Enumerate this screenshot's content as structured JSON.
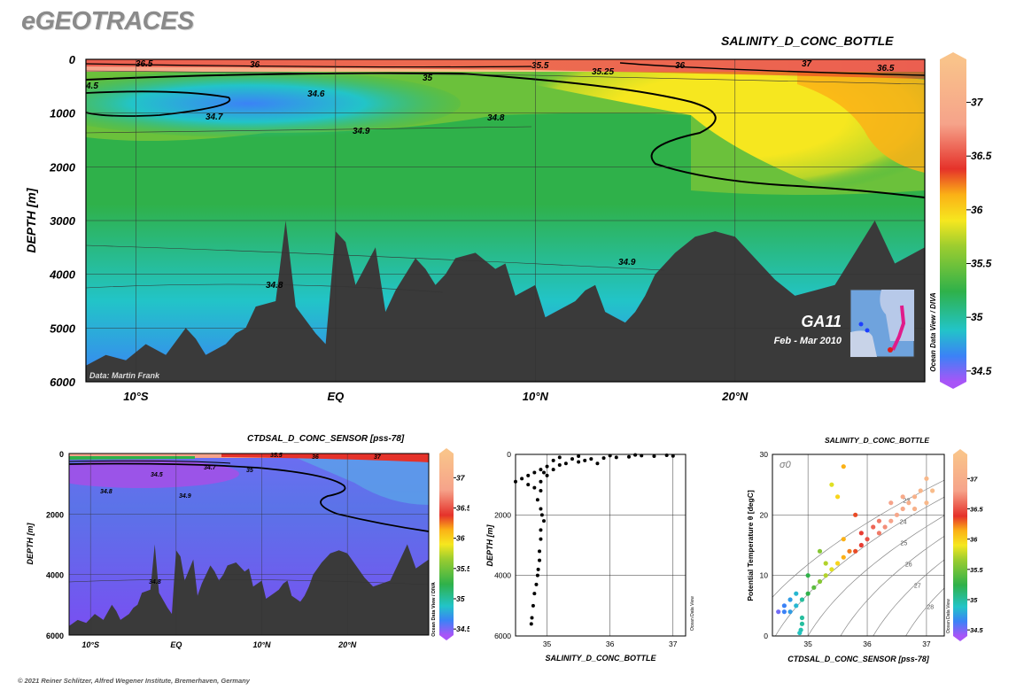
{
  "header": {
    "logo": "eGEOTRACES"
  },
  "footer": {
    "credit": "© 2021 Reiner Schlitzer, Alfred Wegener Institute, Bremerhaven, Germany"
  },
  "colors": {
    "salinity_scale": [
      "#a855f7",
      "#3b82f6",
      "#22c4c8",
      "#2fb14a",
      "#9ccd2f",
      "#f6e71f",
      "#fbb116",
      "#e5322a",
      "#f6a38a",
      "#f9c38a"
    ],
    "bathymetry": "#3a3a3a"
  },
  "main_section": {
    "title": "SALINITY_D_CONC_BOTTLE",
    "ylabel": "DEPTH [m]",
    "credit": "Data: Martin Frank",
    "cruise": "GA11",
    "dates": "Feb - Mar 2010",
    "odv_label": "Ocean Data View / DIVA",
    "contour_labels": [
      "36.5",
      "36",
      "35.5",
      "35.25",
      "36",
      "37",
      "36.5",
      "4.5",
      "34.6",
      "35",
      "34.7",
      "34.8",
      "34.9",
      "34.9",
      "34.8"
    ]
  },
  "sensor_section": {
    "title": "CTDSAL_D_CONC_SENSOR [pss-78]",
    "ylabel": "DEPTH [m]",
    "odv_label": "Ocean Data View / DIVA",
    "contour_labels": [
      "34.7",
      "35",
      "34.5",
      "34.8",
      "34.9",
      "34.8",
      "35.5",
      "36",
      "37"
    ]
  },
  "profile_panel": {
    "xlabel": "SALINITY_D_CONC_BOTTLE",
    "ylabel": "DEPTH [m]",
    "odv_label": "Ocean Data View"
  },
  "ts_panel": {
    "title": "SALINITY_D_CONC_BOTTLE",
    "xlabel": "CTDSAL_D_CONC_SENSOR [pss-78]",
    "ylabel": "Potential Temperature θ [degC]",
    "sigma_label": "σ0",
    "odv_label": "Ocean Data View"
  },
  "chart_data": [
    {
      "type": "heatmap",
      "name": "section_bottle",
      "title": "SALINITY_D_CONC_BOTTLE",
      "ylabel": "DEPTH [m]",
      "xticks": [
        "10°S",
        "EQ",
        "10°N",
        "20°N"
      ],
      "xtick_lat": [
        -10,
        0,
        10,
        20
      ],
      "xlim": [
        -12.5,
        29.5
      ],
      "yticks": [
        0,
        1000,
        2000,
        3000,
        4000,
        5000,
        6000
      ],
      "ylim": [
        6000,
        0
      ],
      "colorbar": {
        "ticks": [
          34.5,
          35,
          35.5,
          36,
          36.5,
          37
        ],
        "range": [
          34.4,
          37.4
        ]
      },
      "grid": true,
      "bathymetry_depth": [
        5700,
        5500,
        5600,
        5300,
        5500,
        5000,
        5200,
        5500,
        5300,
        5100,
        5000,
        4600,
        4500,
        3000,
        4600,
        5100,
        5300,
        3200,
        3400,
        4200,
        3500,
        4700,
        4300,
        3700,
        3900,
        4200,
        4000,
        3700,
        3600,
        3900,
        3800,
        4400,
        4200,
        4800,
        4700,
        4600,
        4500,
        4300,
        4200,
        4700,
        4800,
        4900,
        4700,
        4400,
        4000,
        3600,
        3300,
        3200,
        3300,
        3700,
        4100,
        4400,
        4300,
        4200,
        3600,
        3000,
        3800,
        3500
      ],
      "bathymetry_lat": [
        -12.5,
        -11.5,
        -10.5,
        -9.5,
        -8.5,
        -7.5,
        -7,
        -6.5,
        -5.5,
        -5,
        -4.5,
        -4,
        -3,
        -2.5,
        -2,
        -1,
        -0.5,
        0,
        0.5,
        1,
        2,
        2.5,
        3,
        4,
        4.5,
        5,
        5.5,
        6,
        7,
        8,
        8.5,
        9,
        10,
        10.5,
        11,
        11.5,
        12,
        12.5,
        13,
        13.5,
        14,
        14.5,
        15,
        15.5,
        16,
        17,
        18,
        19,
        20,
        21,
        22,
        23,
        24,
        25,
        26,
        27,
        28,
        29.5
      ]
    },
    {
      "type": "heatmap",
      "name": "section_sensor",
      "title": "CTDSAL_D_CONC_SENSOR [pss-78]",
      "xticks": [
        "10°S",
        "EQ",
        "10°N",
        "20°N"
      ],
      "yticks": [
        0,
        2000,
        4000,
        6000
      ],
      "ylim": [
        6000,
        0
      ],
      "colorbar": {
        "ticks": [
          34.5,
          35,
          35.5,
          36,
          36.5,
          37
        ]
      }
    },
    {
      "type": "scatter",
      "name": "salinity_profile",
      "xlabel": "SALINITY_D_CONC_BOTTLE",
      "ylabel": "DEPTH [m]",
      "xticks": [
        35,
        36,
        37
      ],
      "xlim": [
        34.5,
        37.2
      ],
      "yticks": [
        0,
        2000,
        4000,
        6000
      ],
      "ylim": [
        6000,
        0
      ],
      "grid": true,
      "points": [
        [
          37.0,
          50
        ],
        [
          36.9,
          30
        ],
        [
          36.7,
          60
        ],
        [
          36.5,
          40
        ],
        [
          36.3,
          80
        ],
        [
          36.1,
          100
        ],
        [
          35.9,
          120
        ],
        [
          35.7,
          150
        ],
        [
          35.6,
          200
        ],
        [
          35.5,
          250
        ],
        [
          35.4,
          150
        ],
        [
          35.3,
          300
        ],
        [
          35.2,
          350
        ],
        [
          35.1,
          200
        ],
        [
          35.0,
          400
        ],
        [
          34.9,
          500
        ],
        [
          34.8,
          600
        ],
        [
          34.7,
          700
        ],
        [
          34.6,
          800
        ],
        [
          34.5,
          900
        ],
        [
          34.7,
          1000
        ],
        [
          34.8,
          1100
        ],
        [
          34.9,
          1200
        ],
        [
          34.85,
          1500
        ],
        [
          34.9,
          1800
        ],
        [
          34.92,
          2000
        ],
        [
          34.95,
          2200
        ],
        [
          34.9,
          2500
        ],
        [
          34.9,
          2800
        ],
        [
          34.88,
          3200
        ],
        [
          34.88,
          3500
        ],
        [
          34.86,
          3800
        ],
        [
          34.85,
          4000
        ],
        [
          34.83,
          4300
        ],
        [
          34.8,
          4600
        ],
        [
          34.78,
          5000
        ],
        [
          34.76,
          5400
        ],
        [
          34.75,
          5600
        ],
        [
          35.2,
          100
        ],
        [
          35.5,
          60
        ],
        [
          36.0,
          40
        ],
        [
          36.4,
          20
        ],
        [
          35.8,
          300
        ],
        [
          35.0,
          700
        ],
        [
          34.9,
          900
        ],
        [
          34.95,
          600
        ],
        [
          35.1,
          500
        ]
      ]
    },
    {
      "type": "scatter",
      "name": "ts_diagram",
      "title": "SALINITY_D_CONC_BOTTLE",
      "xlabel": "CTDSAL_D_CONC_SENSOR [pss-78]",
      "ylabel": "Potential Temperature θ [degC]",
      "xticks": [
        35,
        36,
        37
      ],
      "xlim": [
        34.4,
        37.3
      ],
      "yticks": [
        0,
        10,
        20,
        30
      ],
      "ylim": [
        0,
        30
      ],
      "isopycnals": [
        23,
        24,
        25,
        26,
        27,
        28
      ],
      "colorbar": {
        "ticks": [
          34.5,
          35,
          35.5,
          36,
          36.5,
          37
        ]
      },
      "points": [
        [
          37.0,
          26
        ],
        [
          36.9,
          24
        ],
        [
          36.8,
          23
        ],
        [
          36.7,
          22
        ],
        [
          36.6,
          21
        ],
        [
          36.5,
          20
        ],
        [
          36.4,
          19
        ],
        [
          36.3,
          18
        ],
        [
          36.2,
          17
        ],
        [
          36.0,
          16
        ],
        [
          35.9,
          15
        ],
        [
          35.8,
          14
        ],
        [
          35.7,
          14
        ],
        [
          35.6,
          13
        ],
        [
          35.5,
          12
        ],
        [
          35.4,
          11
        ],
        [
          35.3,
          10
        ],
        [
          35.2,
          9
        ],
        [
          35.1,
          8
        ],
        [
          35.0,
          7
        ],
        [
          34.9,
          6
        ],
        [
          34.8,
          5
        ],
        [
          34.7,
          4
        ],
        [
          34.6,
          5
        ],
        [
          34.5,
          4
        ],
        [
          34.9,
          3
        ],
        [
          34.9,
          2
        ],
        [
          34.88,
          1
        ],
        [
          34.86,
          0.5
        ],
        [
          35.6,
          28
        ],
        [
          35.4,
          25
        ],
        [
          35.5,
          23
        ],
        [
          35.8,
          20
        ],
        [
          36.1,
          18
        ],
        [
          36.6,
          23
        ],
        [
          37.1,
          24
        ],
        [
          36.4,
          22
        ],
        [
          35.2,
          14
        ],
        [
          35.0,
          10
        ],
        [
          34.8,
          7
        ],
        [
          35.3,
          12
        ],
        [
          35.6,
          16
        ],
        [
          36.2,
          19
        ],
        [
          36.8,
          21
        ],
        [
          37.0,
          22
        ],
        [
          35.9,
          17
        ],
        [
          34.7,
          6
        ],
        [
          34.6,
          4
        ]
      ]
    }
  ]
}
